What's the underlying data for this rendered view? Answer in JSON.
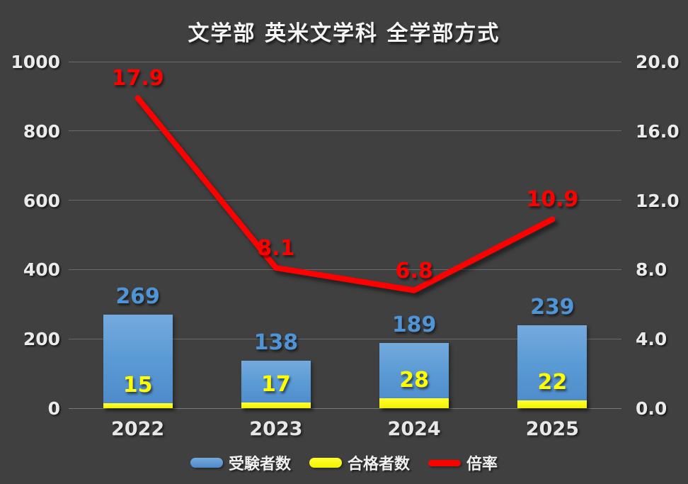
{
  "title": "文学部 英米文学科 全学部方式",
  "colors": {
    "background": "#404040",
    "bar_blue": "#5b9bd5",
    "bar_yellow": "#ffff00",
    "line_red": "#ff0000",
    "axis_text": "#ebebeb",
    "gridline": "rgba(255,255,255,0.22)"
  },
  "chart_data": {
    "type": "bar+line combo, dual axis",
    "title": "文学部 英米文学科 全学部方式",
    "categories": [
      "2022",
      "2023",
      "2024",
      "2025"
    ],
    "series": [
      {
        "name": "受験者数",
        "type": "bar",
        "axis": "left",
        "color": "#5b9bd5",
        "values": [
          269,
          138,
          189,
          239
        ]
      },
      {
        "name": "合格者数",
        "type": "bar",
        "axis": "left",
        "color": "#ffff00",
        "values": [
          15,
          17,
          28,
          22
        ]
      },
      {
        "name": "倍率",
        "type": "line",
        "axis": "right",
        "color": "#ff0000",
        "values": [
          17.9,
          8.1,
          6.8,
          10.9
        ]
      }
    ],
    "left_axis": {
      "min": 0,
      "max": 1000,
      "step": 200,
      "ticks": [
        "0",
        "200",
        "400",
        "600",
        "800",
        "1000"
      ]
    },
    "right_axis": {
      "min": 0,
      "max": 20,
      "step": 4,
      "ticks": [
        "0.0",
        "4.0",
        "8.0",
        "12.0",
        "16.0",
        "20.0"
      ]
    },
    "grid": true,
    "legend_position": "bottom"
  },
  "legend": {
    "items": [
      {
        "label": "受験者数",
        "swatch": "bar",
        "color": "#5b9bd5"
      },
      {
        "label": "合格者数",
        "swatch": "bar",
        "color": "#ffff00"
      },
      {
        "label": "倍率",
        "swatch": "line",
        "color": "#ff0000"
      }
    ]
  }
}
